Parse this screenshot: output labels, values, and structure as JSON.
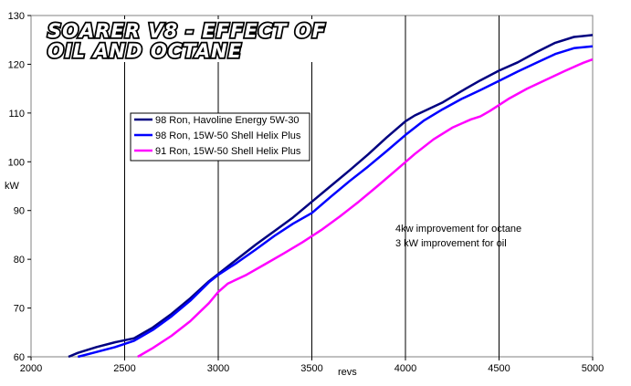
{
  "chart_data": {
    "type": "line",
    "title": [
      "SOARER V8 - EFFECT OF",
      "OIL AND OCTANE"
    ],
    "xlabel": "revs",
    "ylabel": "kW",
    "xlim": [
      2000,
      5000
    ],
    "ylim": [
      60,
      130
    ],
    "x_ticks": [
      2000,
      2500,
      3000,
      3500,
      4000,
      4500,
      5000
    ],
    "y_ticks": [
      60,
      70,
      80,
      90,
      100,
      110,
      120,
      130
    ],
    "grid": "vertical",
    "legend_position": "upper-left",
    "series": [
      {
        "name": "98 Ron, Havoline Energy 5W-30",
        "color": "#000080",
        "x": [
          2200,
          2250,
          2350,
          2450,
          2550,
          2650,
          2750,
          2850,
          2950,
          3000,
          3100,
          3200,
          3300,
          3400,
          3500,
          3600,
          3700,
          3800,
          3900,
          4000,
          4050,
          4100,
          4200,
          4300,
          4400,
          4500,
          4600,
          4700,
          4800,
          4900,
          5000
        ],
        "y": [
          60,
          60.8,
          62,
          63,
          63.8,
          66,
          68.8,
          72,
          75.5,
          77,
          80,
          83,
          85.8,
          88.6,
          91.8,
          95,
          98.2,
          101.5,
          105,
          108.3,
          109.5,
          110.4,
          112.2,
          114.5,
          116.7,
          118.7,
          120.4,
          122.5,
          124.4,
          125.6,
          126
        ]
      },
      {
        "name": "98 Ron, 15W-50 Shell Helix Plus",
        "color": "#0000ff",
        "x": [
          2250,
          2350,
          2450,
          2550,
          2650,
          2750,
          2850,
          2950,
          3000,
          3100,
          3200,
          3300,
          3400,
          3500,
          3600,
          3700,
          3800,
          3900,
          4000,
          4100,
          4200,
          4300,
          4400,
          4500,
          4600,
          4700,
          4800,
          4900,
          5000
        ],
        "y": [
          60,
          61,
          62,
          63.3,
          65.5,
          68.3,
          71.5,
          75.3,
          76.8,
          79.3,
          82,
          84.8,
          87.3,
          89.5,
          92.8,
          96,
          99,
          102.2,
          105.5,
          108.5,
          110.8,
          112.9,
          114.7,
          116.6,
          118.5,
          120.3,
          122.1,
          123.3,
          123.7
        ]
      },
      {
        "name": "91 Ron, 15W-50 Shell Helix Plus",
        "color": "#ff00ff",
        "x": [
          2570,
          2650,
          2750,
          2850,
          2950,
          3000,
          3050,
          3150,
          3250,
          3350,
          3450,
          3550,
          3650,
          3750,
          3850,
          3950,
          4050,
          4150,
          4250,
          4350,
          4400,
          4450,
          4550,
          4650,
          4750,
          4850,
          4950,
          5000
        ],
        "y": [
          60,
          61.8,
          64.3,
          67.3,
          71,
          73.3,
          75,
          76.8,
          79,
          81.2,
          83.5,
          86,
          88.8,
          91.8,
          95,
          98.3,
          101.6,
          104.6,
          107,
          108.7,
          109.3,
          110.4,
          112.9,
          115,
          116.8,
          118.6,
          120.3,
          121
        ]
      }
    ],
    "annotations": [
      "4kw improvement for octane",
      "3 kW improvement for oil"
    ]
  }
}
